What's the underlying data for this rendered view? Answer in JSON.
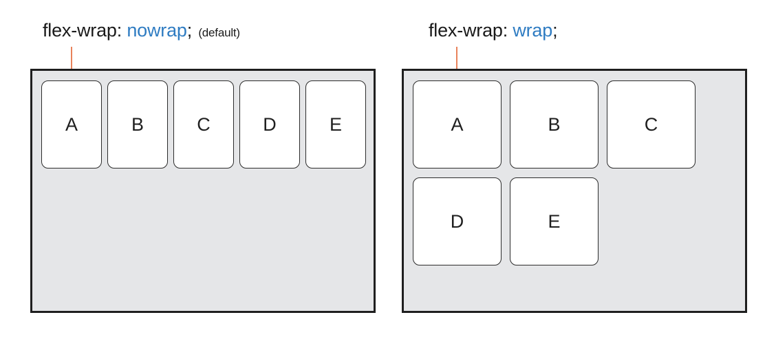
{
  "accent_color": "#2f7cc2",
  "pointer_color": "#e8825a",
  "panels": [
    {
      "caption_property": "flex-wrap:",
      "caption_value": "nowrap",
      "caption_semicolon": ";",
      "caption_note": "(default)",
      "items": [
        "A",
        "B",
        "C",
        "D",
        "E"
      ]
    },
    {
      "caption_property": "flex-wrap:",
      "caption_value": "wrap",
      "caption_semicolon": ";",
      "items": [
        "A",
        "B",
        "C",
        "D",
        "E"
      ]
    }
  ]
}
